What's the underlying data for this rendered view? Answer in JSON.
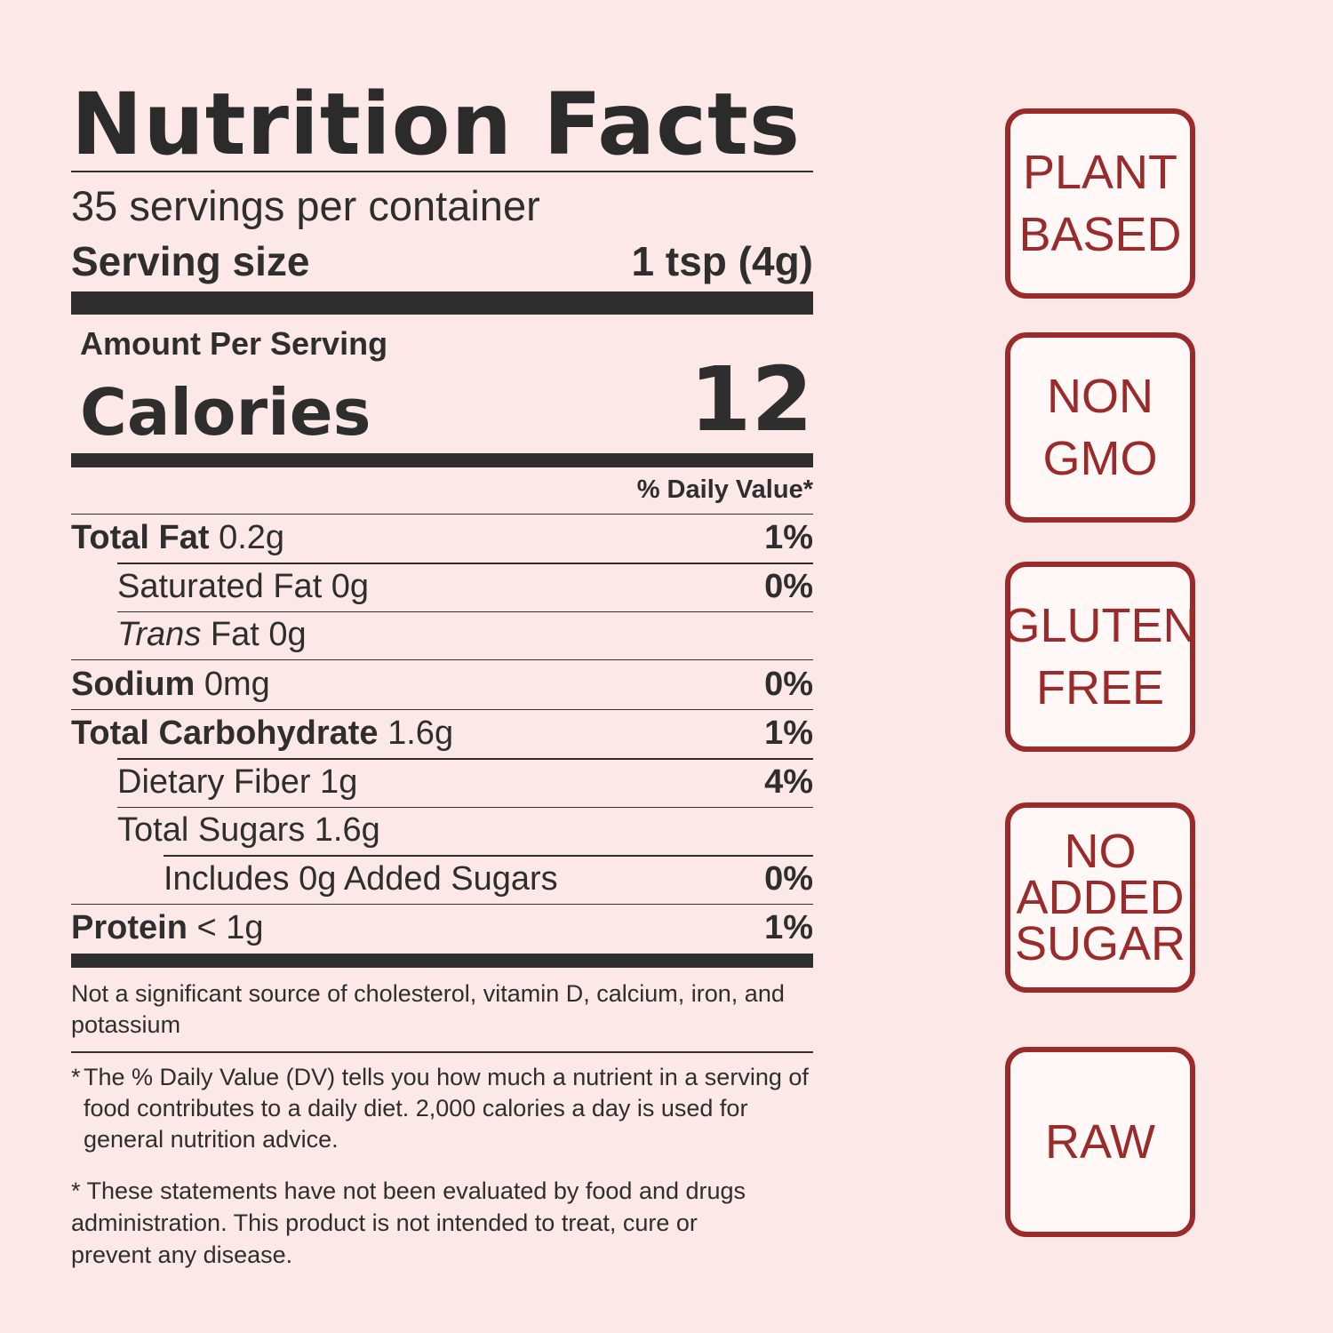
{
  "label": {
    "title": "Nutrition Facts",
    "servings": "35 servings per container",
    "serving_size_label": "Serving size",
    "serving_size_value": "1 tsp (4g)",
    "amount_per_serving": "Amount Per Serving",
    "calories_label": "Calories",
    "calories_value": "12",
    "dv_header": "% Daily Value*",
    "rows": [
      {
        "bold": "Total Fat",
        "italic": "",
        "rest": " 0.2g",
        "pct": "1%"
      },
      {
        "bold": "",
        "italic": "",
        "rest": "Saturated Fat 0g",
        "pct": "0%"
      },
      {
        "bold": "",
        "italic": "Trans",
        "rest": " Fat 0g",
        "pct": ""
      },
      {
        "bold": "Sodium",
        "italic": "",
        "rest": " 0mg",
        "pct": "0%"
      },
      {
        "bold": "Total Carbohydrate",
        "italic": "",
        "rest": " 1.6g",
        "pct": "1%"
      },
      {
        "bold": "",
        "italic": "",
        "rest": "Dietary Fiber 1g",
        "pct": "4%"
      },
      {
        "bold": "",
        "italic": "",
        "rest": "Total Sugars 1.6g",
        "pct": ""
      },
      {
        "bold": "",
        "italic": "",
        "rest": "Includes 0g Added Sugars",
        "pct": "0%"
      },
      {
        "bold": "Protein",
        "italic": "",
        "rest": " < 1g",
        "pct": "1%"
      }
    ],
    "not_significant": "Not a significant source of cholesterol, vitamin D, calcium, iron, and potassium",
    "footnote_star": "*",
    "footnote": "The % Daily Value (DV) tells you how much a nutrient in a serving of food contributes to a daily diet. 2,000 calories a day is used for general nutrition advice.",
    "disclaimer": "* These statements have not been evaluated by food and drugs administration. This product is not intended to treat, cure or prevent any disease."
  },
  "badges": {
    "plant_based": "PLANT\nBASED",
    "non_gmo": "NON\nGMO",
    "gluten_free": "GLUTEN\nFREE",
    "no_added_sugar": "NO\nADDED\nSUGAR",
    "raw": "RAW"
  },
  "colors": {
    "background": "#fce9e7",
    "text": "#2e2e2e",
    "badge": "#9b2a2a"
  }
}
